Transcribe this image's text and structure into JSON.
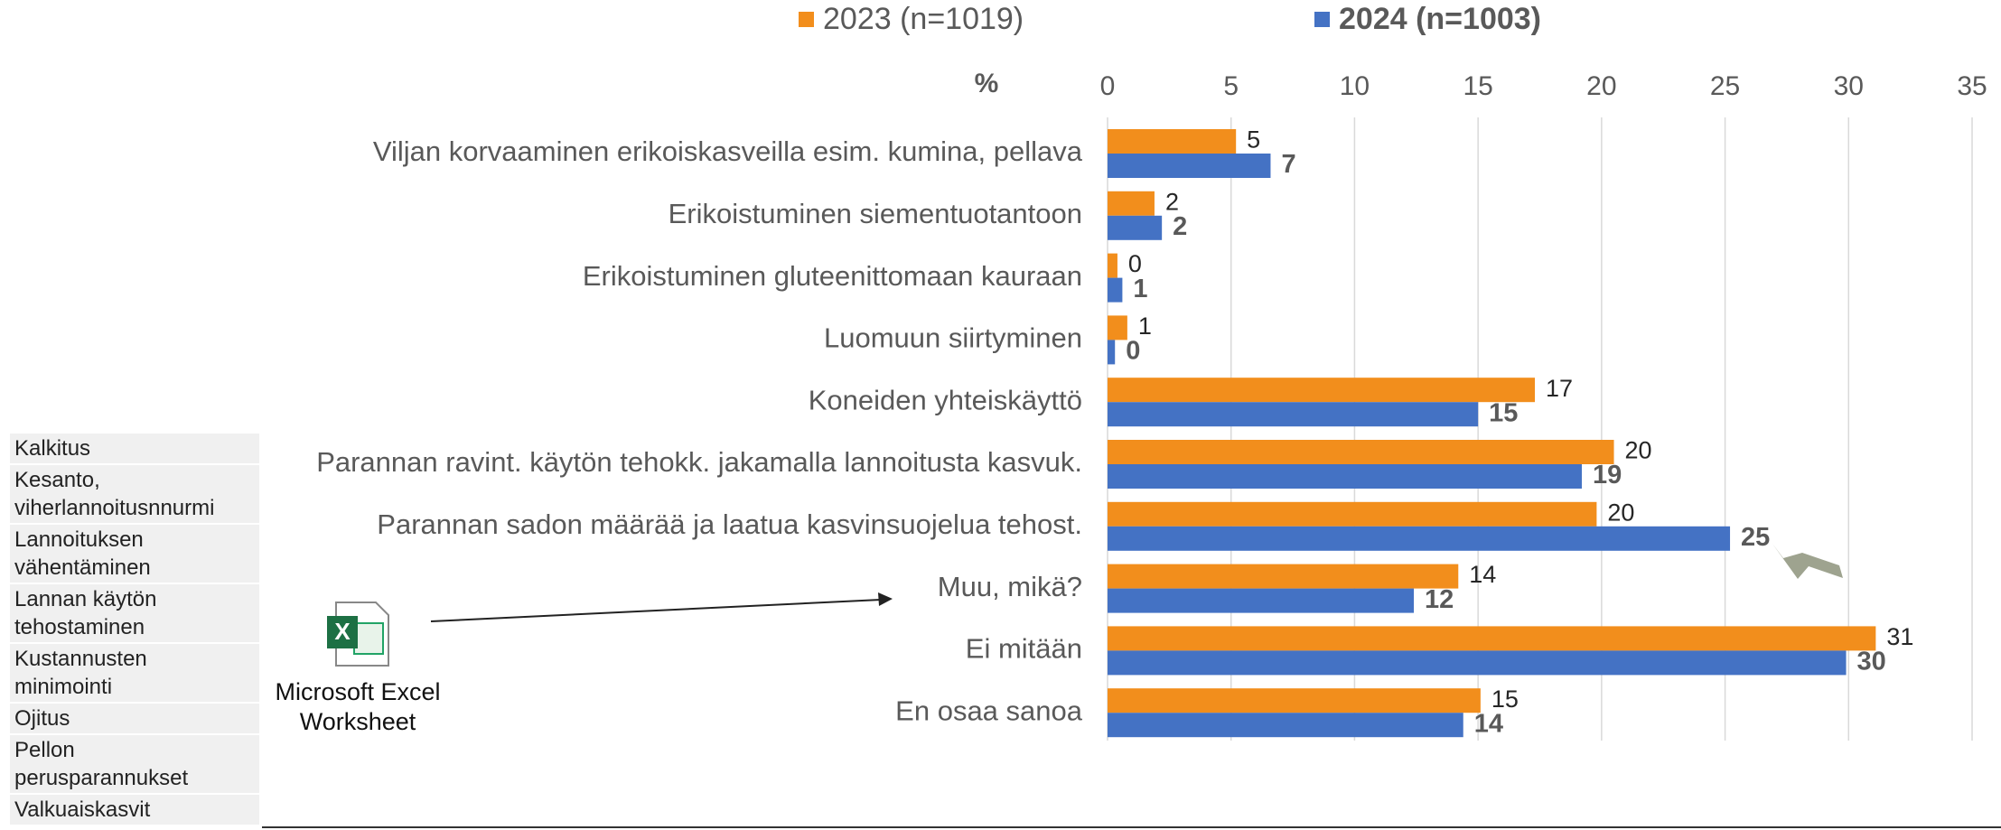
{
  "chart_data": {
    "type": "bar",
    "orientation": "horizontal",
    "axis_label": "%",
    "categories": [
      "Viljan korvaaminen erikoiskasveilla esim. kumina, pellava",
      "Erikoistuminen siementuotantoon",
      "Erikoistuminen gluteenittomaan kauraan",
      "Luomuun siirtyminen",
      "Koneiden yhteiskäyttö",
      "Parannan ravint. käytön tehokk. jakamalla lannoitusta kasvuk.",
      "Parannan sadon määrää ja laatua kasvinsuojelua tehost.",
      "Muu, mikä?",
      "Ei mitään",
      "En osaa sanoa"
    ],
    "series": [
      {
        "name": "2023 (n=1019)",
        "color": "#f28e1c",
        "values": [
          5.2,
          1.9,
          0.4,
          0.8,
          17.3,
          20.5,
          19.8,
          14.2,
          31.1,
          15.1
        ],
        "value_labels": [
          "5",
          "2",
          "0",
          "1",
          "17",
          "20",
          "20",
          "14",
          "31",
          "15"
        ]
      },
      {
        "name": "2024 (n=1003)",
        "color": "#4472c4",
        "values": [
          6.6,
          2.2,
          0.6,
          0.3,
          15.0,
          19.2,
          25.2,
          12.4,
          29.9,
          14.4
        ],
        "value_labels": [
          "7",
          "2",
          "1",
          "0",
          "15",
          "19",
          "25",
          "12",
          "30",
          "14"
        ]
      }
    ],
    "xlim": [
      0,
      35
    ],
    "xticks": [
      0,
      5,
      10,
      15,
      20,
      25,
      30,
      35
    ],
    "grid": true,
    "legend": "top"
  },
  "side_list": [
    [
      "Kalkitus"
    ],
    [
      "Kesanto,",
      "viherlannoitusnnurmi"
    ],
    [
      "Lannoituksen",
      "vähentäminen"
    ],
    [
      "Lannan käytön",
      "tehostaminen"
    ],
    [
      "Kustannusten",
      "minimointi"
    ],
    [
      "Ojitus"
    ],
    [
      "Pellon",
      "perusparannukset"
    ],
    [
      "Valkuaiskasvit"
    ]
  ],
  "embedded_object": {
    "label": [
      "Microsoft Excel",
      "Worksheet"
    ]
  }
}
